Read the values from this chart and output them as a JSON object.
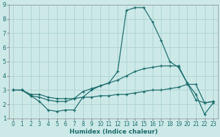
{
  "xlabel": "Humidex (Indice chaleur)",
  "background_color": "#cce9e8",
  "grid_color": "#aed4d3",
  "line_color": "#1a6b6b",
  "xlim": [
    -0.5,
    23.5
  ],
  "ylim": [
    1,
    9
  ],
  "xticks": [
    0,
    1,
    2,
    3,
    4,
    5,
    6,
    7,
    8,
    9,
    10,
    11,
    12,
    13,
    14,
    15,
    16,
    17,
    18,
    19,
    20,
    21,
    22,
    23
  ],
  "yticks": [
    1,
    2,
    3,
    4,
    5,
    6,
    7,
    8,
    9
  ],
  "line1_x": [
    0,
    1,
    2,
    3,
    4,
    5,
    6,
    7,
    8,
    9,
    10,
    11,
    12,
    13,
    14,
    15,
    16,
    17,
    18,
    19,
    20,
    21,
    22,
    23
  ],
  "line1_y": [
    3.0,
    3.0,
    2.6,
    2.2,
    1.6,
    1.5,
    1.6,
    1.6,
    2.5,
    3.0,
    3.3,
    3.5,
    4.3,
    8.6,
    8.8,
    8.8,
    7.8,
    6.5,
    5.0,
    4.6,
    3.5,
    2.7,
    1.3,
    2.1
  ],
  "line2_x": [
    0,
    1,
    2,
    3,
    4,
    5,
    6,
    7,
    8,
    9,
    10,
    11,
    12,
    13,
    14,
    15,
    16,
    17,
    18,
    19,
    20,
    21,
    22,
    23
  ],
  "line2_y": [
    3.0,
    3.0,
    2.6,
    2.5,
    2.3,
    2.2,
    2.2,
    2.4,
    2.9,
    3.1,
    3.3,
    3.5,
    3.7,
    4.0,
    4.3,
    4.5,
    4.6,
    4.7,
    4.7,
    4.7,
    3.5,
    2.3,
    2.1,
    2.2
  ],
  "line3_x": [
    0,
    1,
    2,
    3,
    4,
    5,
    6,
    7,
    8,
    9,
    10,
    11,
    12,
    13,
    14,
    15,
    16,
    17,
    18,
    19,
    20,
    21,
    22,
    23
  ],
  "line3_y": [
    3.0,
    3.0,
    2.7,
    2.7,
    2.5,
    2.4,
    2.4,
    2.4,
    2.5,
    2.5,
    2.6,
    2.6,
    2.7,
    2.7,
    2.8,
    2.9,
    3.0,
    3.0,
    3.1,
    3.2,
    3.4,
    3.4,
    2.1,
    2.2
  ],
  "tick_fontsize": 5.5,
  "xlabel_fontsize": 6.5
}
